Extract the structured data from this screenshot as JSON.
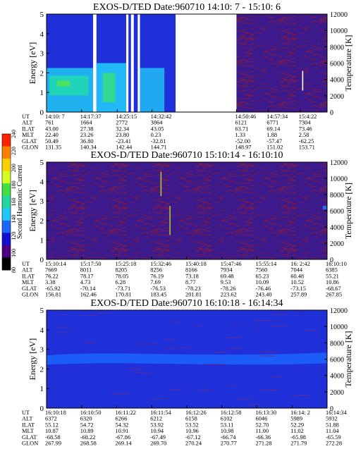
{
  "chart_data": [
    {
      "type": "heatmap",
      "title": "EXOS-D/TED   Date:960710  14:10: 7 - 15:10: 6",
      "ylabel": "Energy [eV]",
      "ylabel_right": "Temperature [K]",
      "ylim": [
        0,
        5
      ],
      "ylim_right": [
        0,
        12000
      ],
      "yticks": [
        "0",
        "1",
        "2",
        "3",
        "4",
        "5"
      ],
      "yticks_right": [
        "0",
        "2000",
        "4000",
        "6000",
        "8000",
        "10000",
        "12000"
      ],
      "row_labels": [
        "UT",
        "ALT",
        "ILAT",
        "MLT",
        "GLAT",
        "GLON"
      ],
      "columns": [
        [
          "14:10: 7",
          "761",
          "43.00",
          "22.40",
          "50.49",
          "131.35"
        ],
        [
          "14:17:37",
          "1664",
          "27.38",
          "23.26",
          "36.80",
          "140.34"
        ],
        [
          "14:25:15",
          "2772",
          "32.34",
          "23.80",
          "-23.41",
          "142.44"
        ],
        [
          "14:32:42",
          "3864",
          "43.05",
          "0.23",
          "-32.81",
          "144.71"
        ],
        [
          "14:50:46",
          "6121",
          "63.71",
          "1.33",
          "-52.00",
          "148.97"
        ],
        [
          "14:57:34",
          "6771",
          "69.14",
          "1.88",
          "-57.47",
          "151.02"
        ],
        [
          "15:4:22",
          "7304",
          "73.46",
          "2.58",
          "-62.25",
          "153.71"
        ]
      ],
      "column_positions": [
        0.0,
        0.125,
        0.252,
        0.376,
        0.677,
        0.79,
        0.904
      ],
      "gaps": [
        [
          0.166,
          0.178
        ],
        [
          0.284,
          0.292
        ],
        [
          0.301,
          0.311
        ],
        [
          0.325,
          0.333
        ],
        [
          0.46,
          0.73
        ]
      ]
    },
    {
      "type": "heatmap",
      "title": "EXOS-D/TED   Date:960710  15:10:14 - 16:10:10",
      "ylabel": "Energy [eV]",
      "ylabel_right": "Temperature [K]",
      "ylim": [
        0,
        5
      ],
      "ylim_right": [
        0,
        12000
      ],
      "yticks": [
        "0",
        "1",
        "2",
        "3",
        "4",
        "5"
      ],
      "yticks_right": [
        "0",
        "2000",
        "4000",
        "6000",
        "8000",
        "10000",
        "12000"
      ],
      "row_labels": [
        "UT",
        "ALT",
        "ILAT",
        "MLT",
        "GLAT",
        "GLON"
      ],
      "columns": [
        [
          "15:10:14",
          "7669",
          "76.22",
          "3.38",
          "-65.92",
          "156.81"
        ],
        [
          "15:17:50",
          "8011",
          "78.17",
          "4.73",
          "-70.14",
          "162.46"
        ],
        [
          "15:25:18",
          "8205",
          "78.05",
          "6.28",
          "-73.71",
          "170.81"
        ],
        [
          "15:32:46",
          "8256",
          "76.19",
          "7.69",
          "-76.53",
          "183.45"
        ],
        [
          "15:40:18",
          "8166",
          "73.18",
          "8.77",
          "-78.23",
          "201.81"
        ],
        [
          "15:47:46",
          "7934",
          "69.48",
          "9.53",
          "-78.26",
          "223.62"
        ],
        [
          "15:55:14",
          "7560",
          "65.23",
          "10.09",
          "-76.46",
          "243.40"
        ],
        [
          "16: 2:42",
          "7044",
          "60.48",
          "10.52",
          "-73.15",
          "257.89"
        ],
        [
          "16:10:10",
          "6385",
          "55.21",
          "10.86",
          "-68.67",
          "267.85"
        ]
      ],
      "column_positions": [
        0.0,
        0.125,
        0.25,
        0.375,
        0.5,
        0.625,
        0.75,
        0.875,
        1.0
      ],
      "colorbar": {
        "label": "Second Harmonic Current",
        "ticks": [
          "80",
          "100",
          "120",
          "140",
          "160",
          "180",
          "200",
          "220",
          "240"
        ]
      }
    },
    {
      "type": "heatmap",
      "title": "EXOS-D/TED   Date:960710  16:10:18 - 16:14:34",
      "ylabel": "Energy [eV]",
      "ylabel_right": "Temperature [K]",
      "ylim": [
        0,
        5
      ],
      "ylim_right": [
        0,
        12000
      ],
      "yticks": [
        "0",
        "1",
        "2",
        "3",
        "4",
        "5"
      ],
      "yticks_right": [
        "0",
        "2000",
        "4000",
        "6000",
        "8000",
        "10000",
        "12000"
      ],
      "row_labels": [
        "UT",
        "ALT",
        "ILAT",
        "MLT",
        "GLAT",
        "GLON"
      ],
      "columns": [
        [
          "16:10:18",
          "6372",
          "55.12",
          "10.87",
          "-68.58",
          "267.99"
        ],
        [
          "16:10:50",
          "6320",
          "54.72",
          "10.89",
          "-68.22",
          "268.58"
        ],
        [
          "16:11:22",
          "6266",
          "54.32",
          "10.91",
          "-67.86",
          "269.14"
        ],
        [
          "16:11:54",
          "6212",
          "53.92",
          "10.94",
          "-67.49",
          "269.70"
        ],
        [
          "16:12:26",
          "6158",
          "53.52",
          "10.96",
          "-67.12",
          "270.24"
        ],
        [
          "16:12:58",
          "6102",
          "53.11",
          "10.98",
          "-66.74",
          "270.77"
        ],
        [
          "16:13:30",
          "6046",
          "52.70",
          "11.00",
          "-66.36",
          "271.28"
        ],
        [
          "16:14: 2",
          "5989",
          "52.29",
          "11.02",
          "-65.98",
          "271.79"
        ],
        [
          "16:14:34",
          "5932",
          "51.88",
          "11.04",
          "-65.59",
          "272.28"
        ]
      ],
      "column_positions": [
        0.0,
        0.125,
        0.25,
        0.375,
        0.5,
        0.625,
        0.75,
        0.875,
        1.0
      ]
    }
  ],
  "colors": {
    "colorbar": [
      "#000000",
      "#4a0080",
      "#1010d0",
      "#1e64ff",
      "#20c8ff",
      "#20d8a0",
      "#40e040",
      "#d0ff20",
      "#ffd000",
      "#ff8000",
      "#ff2000"
    ],
    "noise_bg": "#3c1a8c",
    "noise_line": "#8a1a3a",
    "deep_blue": "#2030d8",
    "band_blue": "#1c5cf8"
  }
}
